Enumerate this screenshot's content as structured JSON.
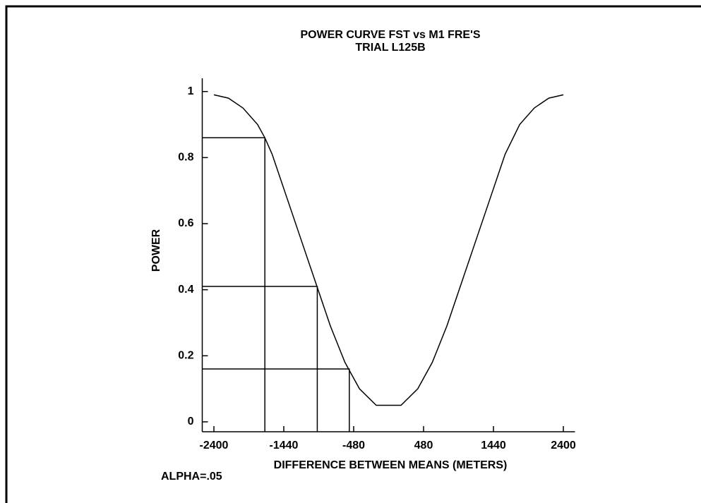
{
  "chart_data": {
    "type": "line",
    "title": "POWER CURVE  FST vs M1  FRE'S",
    "subtitle": "TRIAL L125B",
    "ylabel": "POWER",
    "xlabel": "DIFFERENCE BETWEEN MEANS (METERS)",
    "annotation": "ALPHA=.05",
    "x": [
      -2400,
      -2200,
      -2000,
      -1800,
      -1700,
      -1600,
      -1400,
      -1200,
      -1000,
      -800,
      -600,
      -400,
      -170,
      170,
      400,
      600,
      800,
      1000,
      1200,
      1400,
      1600,
      1800,
      2000,
      2200,
      2400
    ],
    "series": [
      {
        "color": "#000000",
        "values": [
          0.99,
          0.98,
          0.95,
          0.9,
          0.86,
          0.81,
          0.68,
          0.55,
          0.42,
          0.29,
          0.18,
          0.1,
          0.05,
          0.05,
          0.1,
          0.18,
          0.29,
          0.42,
          0.55,
          0.68,
          0.81,
          0.9,
          0.95,
          0.98,
          0.99
        ]
      }
    ],
    "reference_lines": [
      {
        "x": -1700,
        "y": 0.86
      },
      {
        "x": -980,
        "y": 0.41
      },
      {
        "x": -540,
        "y": 0.16
      }
    ],
    "xlim": [
      -2560,
      2560
    ],
    "xticks": [
      -2400,
      -1440,
      -480,
      480,
      1440,
      2400
    ],
    "ylim": [
      -0.03,
      1.04
    ],
    "yticks": [
      0,
      0.2,
      0.4,
      0.6,
      0.8,
      1
    ]
  }
}
